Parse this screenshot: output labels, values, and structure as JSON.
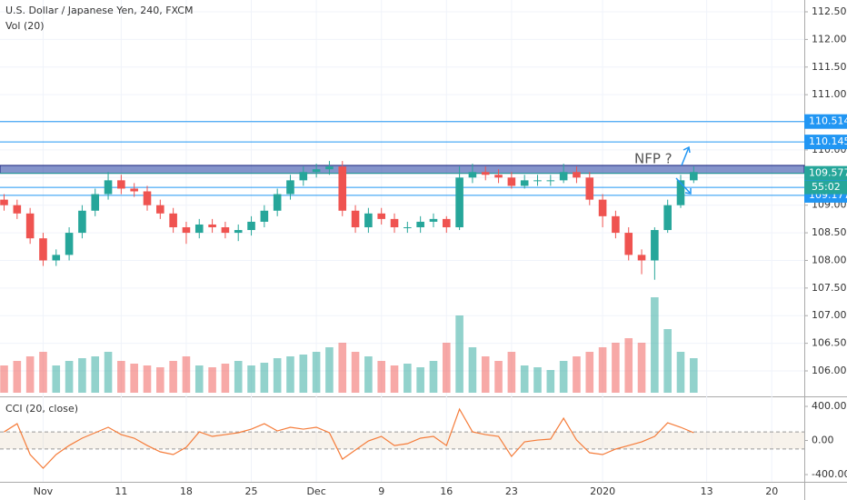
{
  "chart_data": {
    "type": "candlestick",
    "title": "U.S. Dollar / Japanese Yen, 240, FXCM",
    "up_color": "#26a69a",
    "down_color": "#ef5350",
    "x": [
      -3,
      -2,
      -1,
      0,
      1,
      2,
      3,
      4,
      5,
      6,
      7,
      8,
      9,
      10,
      11,
      12,
      13,
      14,
      15,
      16,
      17,
      18,
      19,
      20,
      21,
      22,
      23,
      24,
      25,
      26,
      27,
      28,
      29,
      30,
      31,
      32,
      33,
      34,
      35,
      36,
      37,
      38,
      39,
      40,
      41,
      42,
      43,
      44,
      45,
      46,
      47,
      48,
      49,
      50
    ],
    "open": [
      109.1,
      109.0,
      108.85,
      108.4,
      108.0,
      108.1,
      108.5,
      108.9,
      109.2,
      109.45,
      109.3,
      109.25,
      109.0,
      108.85,
      108.6,
      108.5,
      108.65,
      108.6,
      108.5,
      108.55,
      108.7,
      108.9,
      109.2,
      109.45,
      109.6,
      109.65,
      109.7,
      108.9,
      108.6,
      108.85,
      108.75,
      108.6,
      108.6,
      108.7,
      108.75,
      108.6,
      109.5,
      109.6,
      109.55,
      109.5,
      109.35,
      109.45,
      109.45,
      109.45,
      109.6,
      109.5,
      109.1,
      108.8,
      108.5,
      108.1,
      108.0,
      108.55,
      109.0,
      109.45
    ],
    "high": [
      109.2,
      109.1,
      108.95,
      108.5,
      108.2,
      108.6,
      109.0,
      109.3,
      109.6,
      109.55,
      109.4,
      109.35,
      109.1,
      108.95,
      108.7,
      108.75,
      108.75,
      108.7,
      108.65,
      108.8,
      109.0,
      109.3,
      109.55,
      109.7,
      109.75,
      109.8,
      109.8,
      109.0,
      108.95,
      108.95,
      108.85,
      108.7,
      108.8,
      108.85,
      108.8,
      109.7,
      109.75,
      109.7,
      109.65,
      109.6,
      109.55,
      109.55,
      109.55,
      109.75,
      109.7,
      109.6,
      109.2,
      108.9,
      108.6,
      108.2,
      108.6,
      109.1,
      109.55,
      109.7
    ],
    "low": [
      108.9,
      108.75,
      108.3,
      107.9,
      107.9,
      108.0,
      108.4,
      108.8,
      109.1,
      109.2,
      109.15,
      108.9,
      108.75,
      108.5,
      108.3,
      108.4,
      108.5,
      108.4,
      108.35,
      108.45,
      108.6,
      108.8,
      109.1,
      109.35,
      109.5,
      109.55,
      108.8,
      108.5,
      108.5,
      108.65,
      108.5,
      108.5,
      108.5,
      108.6,
      108.5,
      108.55,
      109.4,
      109.45,
      109.4,
      109.3,
      109.3,
      109.35,
      109.35,
      109.4,
      109.4,
      109.0,
      108.6,
      108.4,
      108.0,
      107.75,
      107.65,
      108.5,
      108.95,
      109.4
    ],
    "close": [
      109.0,
      108.85,
      108.4,
      108.0,
      108.1,
      108.5,
      108.9,
      109.2,
      109.45,
      109.3,
      109.25,
      109.0,
      108.85,
      108.6,
      108.5,
      108.65,
      108.6,
      108.5,
      108.55,
      108.7,
      108.9,
      109.2,
      109.45,
      109.6,
      109.65,
      109.7,
      108.9,
      108.6,
      108.85,
      108.75,
      108.6,
      108.6,
      108.7,
      108.75,
      108.6,
      109.5,
      109.6,
      109.55,
      109.5,
      109.35,
      109.45,
      109.45,
      109.45,
      109.6,
      109.5,
      109.1,
      108.8,
      108.5,
      108.1,
      108.0,
      108.55,
      109.0,
      109.45,
      109.6
    ],
    "xlim": [
      -3.315,
      58.5
    ],
    "xticks": [
      {
        "value": 0,
        "label": "Nov"
      },
      {
        "value": 6,
        "label": "11"
      },
      {
        "value": 11,
        "label": "18"
      },
      {
        "value": 16,
        "label": "25"
      },
      {
        "value": 21,
        "label": "Dec"
      },
      {
        "value": 26,
        "label": "9"
      },
      {
        "value": 31,
        "label": "16"
      },
      {
        "value": 36,
        "label": "23"
      },
      {
        "value": 43,
        "label": "2020"
      },
      {
        "value": 51,
        "label": "13"
      },
      {
        "value": 56,
        "label": "20"
      }
    ],
    "ylim": [
      105.605,
      112.714
    ],
    "yticks": [
      {
        "value": 106,
        "label": "106.000"
      },
      {
        "value": 106.5,
        "label": "106.500"
      },
      {
        "value": 107,
        "label": "107.000"
      },
      {
        "value": 107.5,
        "label": "107.500"
      },
      {
        "value": 108,
        "label": "108.000"
      },
      {
        "value": 108.5,
        "label": "108.500"
      },
      {
        "value": 109,
        "label": "109.000"
      },
      {
        "value": 109.5,
        "label": "109.500"
      },
      {
        "value": 110,
        "label": "110.000"
      },
      {
        "value": 110.5,
        "label": "110.500"
      },
      {
        "value": 111,
        "label": "111.000"
      },
      {
        "value": 111.5,
        "label": "111.500"
      },
      {
        "value": 112,
        "label": "112.000"
      },
      {
        "value": 112.5,
        "label": "112.500"
      }
    ],
    "zone": [
      109.577,
      109.72
    ],
    "levels": [
      {
        "value": 110.514,
        "color": "#2196f3"
      },
      {
        "value": 110.145,
        "color": "#2196f3"
      },
      {
        "value": 109.577,
        "color": "#26a69a"
      },
      {
        "value": 109.322,
        "color": "#2196f3"
      },
      {
        "value": 109.177,
        "color": "#2196f3"
      }
    ],
    "countdown": "55:02",
    "annotation": "NFP ?",
    "volume": {
      "name": "Vol (20)",
      "lim": [
        0,
        432
      ],
      "values": [
        30,
        35,
        40,
        45,
        30,
        35,
        38,
        40,
        45,
        35,
        32,
        30,
        28,
        35,
        40,
        30,
        28,
        32,
        35,
        30,
        33,
        38,
        40,
        42,
        45,
        50,
        55,
        45,
        40,
        35,
        30,
        32,
        28,
        35,
        55,
        85,
        50,
        40,
        35,
        45,
        30,
        28,
        25,
        35,
        40,
        45,
        50,
        55,
        60,
        55,
        105,
        70,
        45,
        38
      ]
    },
    "cci": {
      "name": "CCI (20, close)",
      "color": "#f57c3a",
      "ylim": [
        -485,
        507
      ],
      "band": [
        -100,
        100
      ],
      "yticks": [
        {
          "value": 400,
          "label": "400.00"
        },
        {
          "value": 0,
          "label": "0.00"
        },
        {
          "value": -400,
          "label": "-400.00"
        }
      ],
      "values": [
        101,
        197,
        -165,
        -325,
        -165,
        -59,
        27,
        91,
        155,
        69,
        27,
        -59,
        -133,
        -165,
        -80,
        101,
        48,
        69,
        91,
        133,
        197,
        112,
        155,
        133,
        155,
        91,
        -219,
        -112,
        -5,
        48,
        -59,
        -37,
        27,
        48,
        -59,
        368,
        101,
        69,
        48,
        -187,
        -16,
        5,
        16,
        261,
        5,
        -144,
        -165,
        -101,
        -59,
        -16,
        48,
        208,
        155,
        91
      ]
    }
  }
}
